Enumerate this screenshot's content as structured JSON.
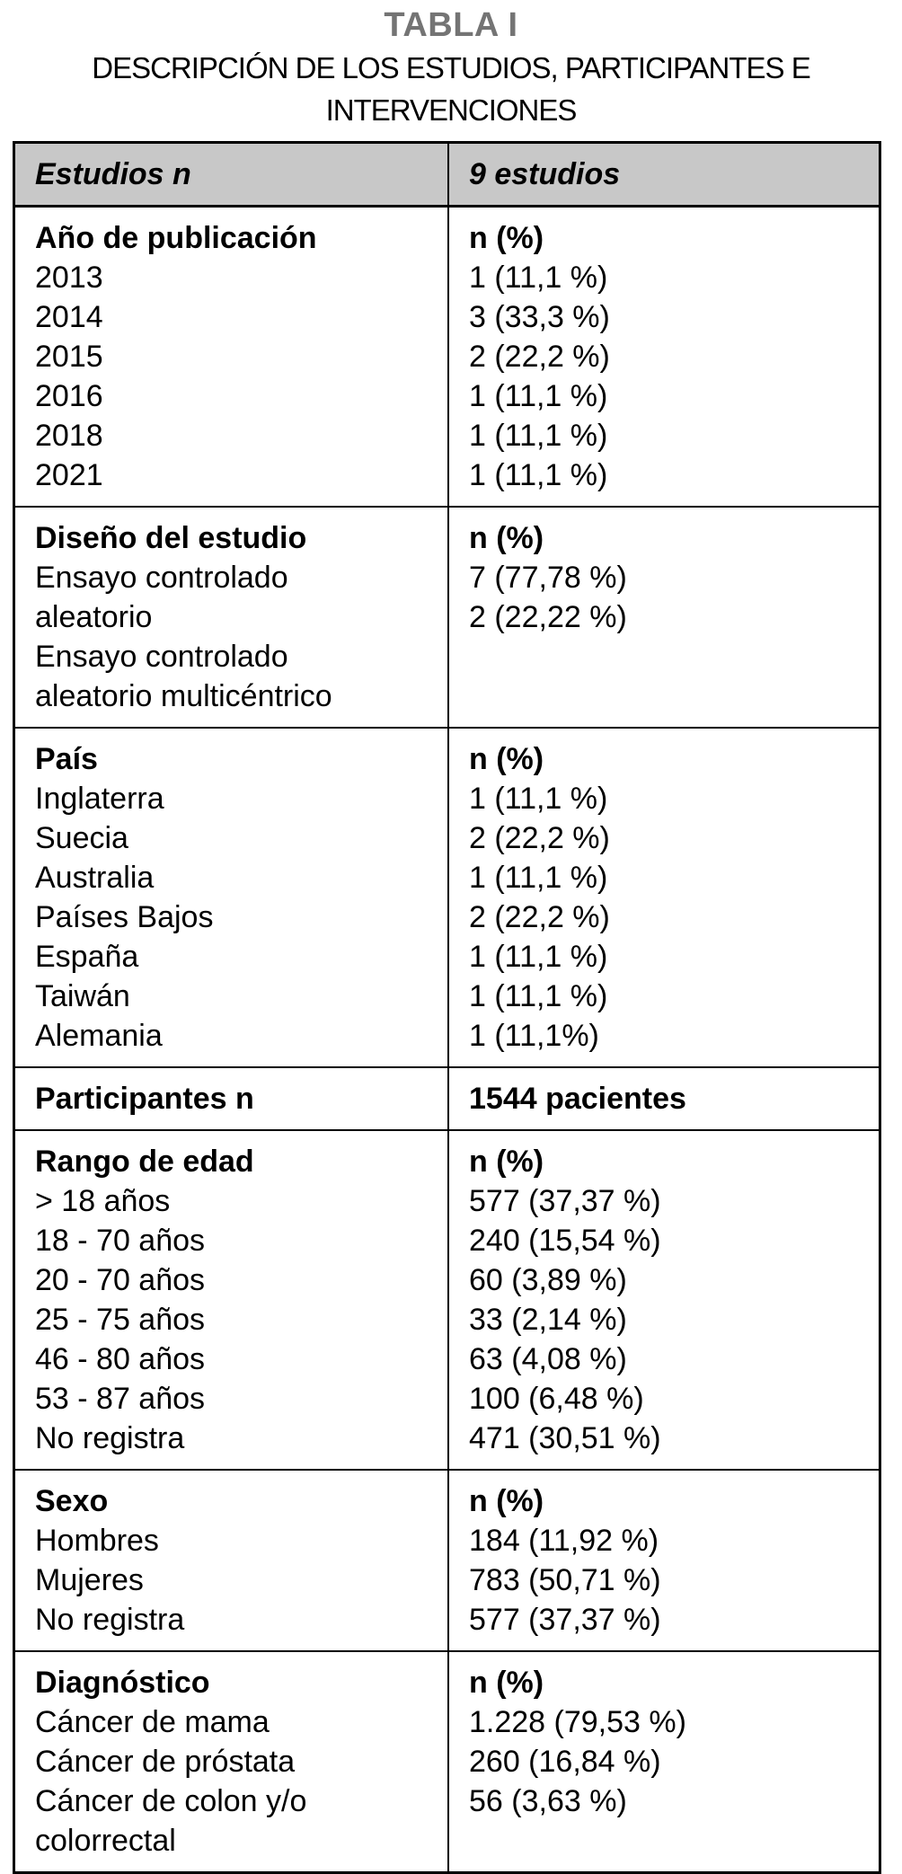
{
  "title": "TABLA I",
  "subtitle_lines": [
    "DESCRIPCIÓN DE LOS ESTUDIOS, PARTICIPANTES E",
    "INTERVENCIONES"
  ],
  "colors": {
    "header_bg": "#c8c8c8",
    "title_color": "#747474",
    "border_color": "#000000",
    "text_color": "#000000"
  },
  "table": {
    "header": {
      "left": "Estudios n",
      "right": "9 estudios"
    },
    "sections": [
      {
        "name": "año-de-publicación",
        "left": [
          "Año de publicación",
          "2013",
          "2014",
          "2015",
          "2016",
          "2018",
          "2021"
        ],
        "right": [
          "n (%)",
          "1 (11,1 %)",
          "3 (33,3 %)",
          "2 (22,2 %)",
          "1 (11,1 %)",
          "1 (11,1 %)",
          "1 (11,1 %)"
        ]
      },
      {
        "name": "diseño-del-estudio",
        "left": [
          "Diseño del estudio",
          "Ensayo controlado",
          "aleatorio",
          "Ensayo controlado",
          "aleatorio multicéntrico"
        ],
        "right": [
          "n (%)",
          "7 (77,78 %)",
          "2 (22,22 %)"
        ]
      },
      {
        "name": "país",
        "left": [
          "País",
          "Inglaterra",
          "Suecia",
          "Australia",
          "Países Bajos",
          "España",
          "Taiwán",
          "Alemania"
        ],
        "right": [
          "n (%)",
          "1 (11,1 %)",
          "2 (22,2 %)",
          "1 (11,1 %)",
          "2 (22,2 %)",
          "1 (11,1 %)",
          "1 (11,1 %)",
          "1 (11,1%)"
        ]
      },
      {
        "name": "participantes",
        "left": [
          "Participantes n"
        ],
        "right": [
          "1544 pacientes"
        ]
      },
      {
        "name": "rango-de-edad",
        "left": [
          "Rango de edad",
          "> 18 años",
          "18 - 70 años",
          "20 - 70 años",
          "25 - 75 años",
          "46 - 80 años",
          "53 - 87 años",
          "No registra"
        ],
        "right": [
          "n (%)",
          "577 (37,37 %)",
          "240 (15,54 %)",
          "60 (3,89 %)",
          "33 (2,14 %)",
          "63 (4,08 %)",
          "100 (6,48 %)",
          "471 (30,51 %)"
        ]
      },
      {
        "name": "sexo",
        "left": [
          "Sexo",
          "Hombres",
          "Mujeres",
          "No registra"
        ],
        "right": [
          "n (%)",
          "184 (11,92 %)",
          "783 (50,71 %)",
          "577 (37,37 %)"
        ]
      },
      {
        "name": "diagnóstico",
        "left": [
          "Diagnóstico",
          "Cáncer de mama",
          "Cáncer de próstata",
          "Cáncer de colon y/o",
          "colorrectal"
        ],
        "right": [
          "n (%)",
          "1.228 (79,53 %)",
          "260 (16,84 %)",
          "56 (3,63 %)"
        ]
      }
    ]
  }
}
